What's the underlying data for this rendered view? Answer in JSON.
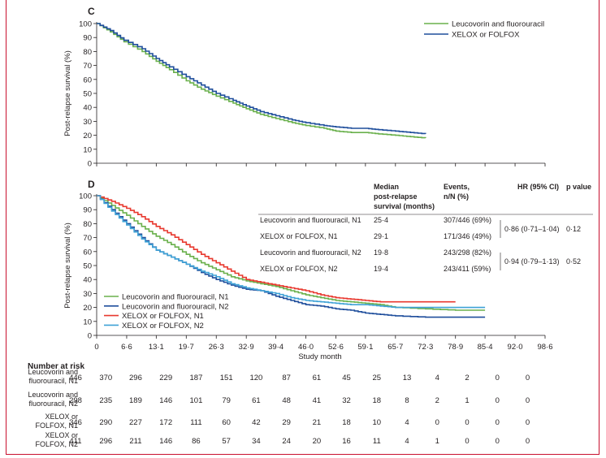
{
  "chart_data": [
    {
      "type": "line",
      "panel_label": "C",
      "ylabel": "Post-relapse survival (%)",
      "xlabel": "",
      "ylim": [
        0,
        100
      ],
      "yticks": [
        0,
        10,
        20,
        30,
        40,
        50,
        60,
        70,
        80,
        90,
        100
      ],
      "xlim": [
        0,
        98.6
      ],
      "legend_position": "top-right",
      "series": [
        {
          "name": "Leucovorin and fluorouracil",
          "color": "#6ab04c",
          "x": [
            0,
            3,
            6,
            10,
            13.1,
            16,
            19.7,
            23,
            26.3,
            30,
            32.9,
            36,
            39.4,
            43,
            46,
            50,
            52.6,
            56,
            59.1,
            62,
            65.7,
            69,
            72.3
          ],
          "y": [
            100,
            94,
            87,
            80,
            73,
            67,
            59,
            53,
            48,
            43,
            39,
            35,
            32,
            29,
            27,
            25,
            23,
            22,
            22,
            21,
            20,
            19,
            18
          ]
        },
        {
          "name": "XELOX or FOLFOX",
          "color": "#1f4e9c",
          "x": [
            0,
            3,
            6,
            10,
            13.1,
            16,
            19.7,
            23,
            26.3,
            30,
            32.9,
            36,
            39.4,
            43,
            46,
            50,
            52.6,
            56,
            59.1,
            62,
            65.7,
            69,
            72.3
          ],
          "y": [
            100,
            95,
            88,
            82,
            75,
            69,
            62,
            56,
            50,
            45,
            41,
            37,
            34,
            31,
            29,
            27,
            26,
            25,
            25,
            24,
            23,
            22,
            21
          ]
        }
      ]
    },
    {
      "type": "line",
      "panel_label": "D",
      "ylabel": "Post-relapse survival (%)",
      "xlabel": "Study month",
      "ylim": [
        0,
        100
      ],
      "yticks": [
        0,
        10,
        20,
        30,
        40,
        50,
        60,
        70,
        80,
        90,
        100
      ],
      "xlim": [
        0,
        98.6
      ],
      "xtick_values": [
        0,
        6.6,
        13.1,
        19.7,
        26.3,
        32.9,
        39.4,
        46.0,
        52.6,
        59.1,
        65.7,
        72.3,
        78.9,
        85.4,
        92.0,
        98.6
      ],
      "xtick_labels": [
        "0",
        "6·6",
        "13·1",
        "19·7",
        "26·3",
        "32·9",
        "39·4",
        "46·0",
        "52·6",
        "59·1",
        "65·7",
        "72·3",
        "78·9",
        "85·4",
        "92·0",
        "98·6"
      ],
      "legend_position": "bottom-left",
      "series": [
        {
          "name": "Leucovorin and fluorouracil, N1",
          "color": "#6ab04c",
          "x": [
            0,
            3.3,
            6.6,
            9.9,
            13.1,
            16.4,
            19.7,
            23,
            26.3,
            29.6,
            32.9,
            36.1,
            39.4,
            42.7,
            46,
            49.3,
            52.6,
            55.9,
            59.1,
            62.4,
            65.7,
            72.3,
            78.9,
            85.4
          ],
          "y": [
            100,
            93,
            86,
            78,
            71,
            65,
            58,
            52,
            47,
            42,
            39,
            37,
            35,
            32,
            29,
            27,
            25,
            24,
            23,
            22,
            20,
            19,
            18,
            18
          ]
        },
        {
          "name": "Leucovorin and fluorouracil, N2",
          "color": "#1f4e9c",
          "x": [
            0,
            3.3,
            6.6,
            9.9,
            13.1,
            16.4,
            19.7,
            23,
            26.3,
            29.6,
            32.9,
            36.1,
            39.4,
            42.7,
            46,
            49.3,
            52.6,
            55.9,
            59.1,
            62.4,
            65.7,
            72.3,
            78.9,
            85.4
          ],
          "y": [
            100,
            90,
            80,
            70,
            61,
            56,
            51,
            45,
            40,
            36,
            33,
            32,
            28,
            25,
            22,
            21,
            19,
            18,
            16,
            15,
            14,
            13,
            13,
            13
          ]
        },
        {
          "name": "XELOX or FOLFOX, N1",
          "color": "#e8392f",
          "x": [
            0,
            3.3,
            6.6,
            9.9,
            13.1,
            16.4,
            19.7,
            23,
            26.3,
            29.6,
            32.9,
            36.1,
            39.4,
            42.7,
            46,
            49.3,
            52.6,
            55.9,
            59.1,
            62.4,
            65.7,
            72.3,
            78.9
          ],
          "y": [
            100,
            96,
            91,
            85,
            78,
            72,
            65,
            58,
            52,
            46,
            40,
            38,
            36,
            34,
            32,
            29,
            27,
            26,
            25,
            24,
            24,
            24,
            24
          ]
        },
        {
          "name": "XELOX or FOLFOX, N2",
          "color": "#3fa2d6",
          "x": [
            0,
            3.3,
            6.6,
            9.9,
            13.1,
            16.4,
            19.7,
            23,
            26.3,
            29.6,
            32.9,
            36.1,
            39.4,
            42.7,
            46,
            49.3,
            52.6,
            55.9,
            59.1,
            62.4,
            65.7,
            72.3,
            78.9,
            85.4
          ],
          "y": [
            100,
            89,
            79,
            69,
            61,
            56,
            51,
            46,
            42,
            37,
            34,
            32,
            30,
            27,
            25,
            24,
            23,
            22,
            22,
            21,
            20,
            20,
            20,
            20
          ]
        }
      ],
      "summary_table": {
        "headers": [
          "Median post-relapse survival (months)",
          "Events, n/N (%)",
          "HR (95% CI)",
          "p value"
        ],
        "header_lines": [
          [
            "Median",
            "post-relapse",
            "survival (months)"
          ],
          [
            "Events,",
            "n/N (%)"
          ],
          [
            "HR (95% CI)"
          ],
          [
            "p value"
          ]
        ],
        "rows": [
          {
            "label": "Leucovorin and fluorouracil, N1",
            "median": "25·4",
            "events": "307/446 (69%)"
          },
          {
            "label": "XELOX or FOLFOX, N1",
            "median": "29·1",
            "events": "171/346 (49%)"
          },
          {
            "label": "Leucovorin and fluorouracil, N2",
            "median": "19·8",
            "events": "243/298 (82%)"
          },
          {
            "label": "XELOX or FOLFOX, N2",
            "median": "19·4",
            "events": "243/411 (59%)"
          }
        ],
        "comparisons": [
          {
            "hr": "0·86 (0·71–1·04)",
            "p": "0·12"
          },
          {
            "hr": "0·94 (0·79–1·13)",
            "p": "0·52"
          }
        ]
      },
      "risk_table": {
        "title": "Number at risk",
        "rows": [
          {
            "label": [
              "Leucovorin and",
              "fluorouracil, N1"
            ],
            "values": [
              446,
              370,
              296,
              229,
              187,
              151,
              120,
              87,
              61,
              45,
              25,
              13,
              4,
              2,
              0,
              0
            ]
          },
          {
            "label": [
              "Leucovorin and",
              "fluorouracil, N2"
            ],
            "values": [
              298,
              235,
              189,
              146,
              101,
              79,
              61,
              48,
              41,
              32,
              18,
              8,
              2,
              1,
              0,
              0
            ]
          },
          {
            "label": [
              "XELOX or",
              "FOLFOX, N1"
            ],
            "values": [
              346,
              290,
              227,
              172,
              111,
              60,
              42,
              29,
              21,
              18,
              10,
              4,
              0,
              0,
              0,
              0
            ]
          },
          {
            "label": [
              "XELOX or",
              "FOLFOX, N2"
            ],
            "values": [
              411,
              296,
              211,
              146,
              86,
              57,
              34,
              24,
              20,
              16,
              11,
              4,
              1,
              0,
              0,
              0
            ]
          }
        ]
      }
    }
  ]
}
